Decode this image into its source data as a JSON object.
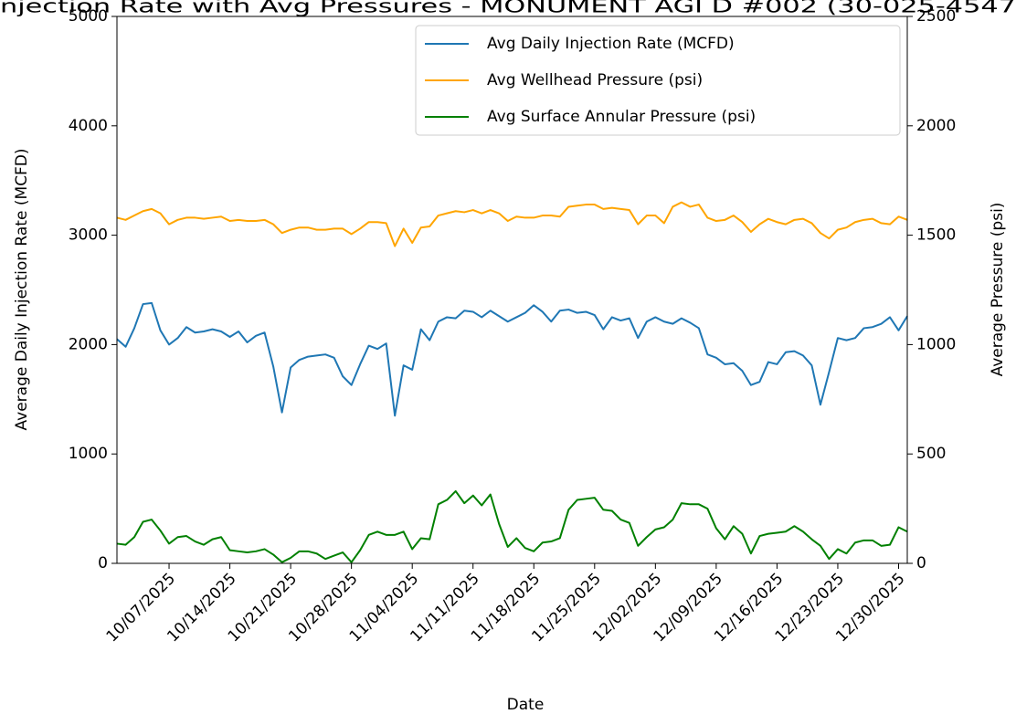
{
  "chart_data": {
    "type": "line",
    "title": "njection Rate with Avg Pressures - MONUMENT AGI D #002 (30-025-4547",
    "x_label": "Date",
    "y_label": "Average Daily Injection Rate (MCFD)",
    "y2_label": "Average Pressure (psi)",
    "x": [
      "10/01/2025",
      "10/02/2025",
      "10/03/2025",
      "10/04/2025",
      "10/05/2025",
      "10/06/2025",
      "10/07/2025",
      "10/08/2025",
      "10/09/2025",
      "10/10/2025",
      "10/11/2025",
      "10/12/2025",
      "10/13/2025",
      "10/14/2025",
      "10/15/2025",
      "10/16/2025",
      "10/17/2025",
      "10/18/2025",
      "10/19/2025",
      "10/20/2025",
      "10/21/2025",
      "10/22/2025",
      "10/23/2025",
      "10/24/2025",
      "10/25/2025",
      "10/26/2025",
      "10/27/2025",
      "10/28/2025",
      "10/29/2025",
      "10/30/2025",
      "10/31/2025",
      "11/01/2025",
      "11/02/2025",
      "11/03/2025",
      "11/04/2025",
      "11/05/2025",
      "11/06/2025",
      "11/07/2025",
      "11/08/2025",
      "11/09/2025",
      "11/10/2025",
      "11/11/2025",
      "11/12/2025",
      "11/13/2025",
      "11/14/2025",
      "11/15/2025",
      "11/16/2025",
      "11/17/2025",
      "11/18/2025",
      "11/19/2025",
      "11/20/2025",
      "11/21/2025",
      "11/22/2025",
      "11/23/2025",
      "11/24/2025",
      "11/25/2025",
      "11/26/2025",
      "11/27/2025",
      "11/28/2025",
      "11/29/2025",
      "11/30/2025",
      "12/01/2025",
      "12/02/2025",
      "12/03/2025",
      "12/04/2025",
      "12/05/2025",
      "12/06/2025",
      "12/07/2025",
      "12/08/2025",
      "12/09/2025",
      "12/10/2025",
      "12/11/2025",
      "12/12/2025",
      "12/13/2025",
      "12/14/2025",
      "12/15/2025",
      "12/16/2025",
      "12/17/2025",
      "12/18/2025",
      "12/19/2025",
      "12/20/2025",
      "12/21/2025",
      "12/22/2025",
      "12/23/2025",
      "12/24/2025",
      "12/25/2025",
      "12/26/2025",
      "12/27/2025",
      "12/28/2025",
      "12/29/2025",
      "12/30/2025",
      "12/31/2025"
    ],
    "xlim": [
      "10/01/2025",
      "12/31/2025"
    ],
    "xticks": [
      "10/07/2025",
      "10/14/2025",
      "10/21/2025",
      "10/28/2025",
      "11/04/2025",
      "11/11/2025",
      "11/18/2025",
      "11/25/2025",
      "12/02/2025",
      "12/09/2025",
      "12/16/2025",
      "12/23/2025",
      "12/30/2025"
    ],
    "ylim": [
      0,
      5000
    ],
    "yticks": [
      0,
      1000,
      2000,
      3000,
      4000,
      5000
    ],
    "y2lim": [
      0,
      2500
    ],
    "y2ticks": [
      0,
      500,
      1000,
      1500,
      2000,
      2500
    ],
    "legend": "upper right",
    "series": [
      {
        "name": "Avg Daily Injection Rate (MCFD)",
        "color": "#1f77b4",
        "values": [
          2050,
          1980,
          2150,
          2370,
          2380,
          2130,
          2000,
          2060,
          2160,
          2110,
          2120,
          2140,
          2120,
          2070,
          2120,
          2020,
          2080,
          2110,
          1800,
          1380,
          1790,
          1860,
          1890,
          1900,
          1910,
          1880,
          1710,
          1630,
          1820,
          1990,
          1960,
          2010,
          1350,
          1810,
          1770,
          2140,
          2040,
          2210,
          2250,
          2240,
          2310,
          2300,
          2250,
          2310,
          2260,
          2210,
          2250,
          2290,
          2360,
          2300,
          2210,
          2310,
          2320,
          2290,
          2300,
          2270,
          2140,
          2250,
          2220,
          2240,
          2060,
          2210,
          2250,
          2210,
          2190,
          2240,
          2200,
          2150,
          1910,
          1880,
          1820,
          1830,
          1760,
          1630,
          1660,
          1840,
          1820,
          1930,
          1940,
          1900,
          1810,
          1450,
          1750,
          2060,
          2040,
          2060,
          2150,
          2160,
          2190,
          2250,
          2130,
          2260
        ]
      },
      {
        "name": "Avg Wellhead Pressure (psi)",
        "color": "#ffa500",
        "axis": "y2",
        "values": [
          1580,
          1570,
          1590,
          1610,
          1620,
          1600,
          1550,
          1570,
          1580,
          1580,
          1575,
          1580,
          1585,
          1565,
          1570,
          1565,
          1565,
          1570,
          1550,
          1510,
          1525,
          1535,
          1535,
          1525,
          1525,
          1530,
          1530,
          1505,
          1530,
          1560,
          1560,
          1555,
          1450,
          1530,
          1465,
          1535,
          1540,
          1590,
          1600,
          1610,
          1605,
          1615,
          1600,
          1615,
          1600,
          1565,
          1585,
          1580,
          1580,
          1590,
          1590,
          1585,
          1630,
          1635,
          1640,
          1640,
          1620,
          1625,
          1620,
          1615,
          1550,
          1590,
          1590,
          1555,
          1630,
          1650,
          1630,
          1640,
          1580,
          1565,
          1570,
          1590,
          1560,
          1515,
          1550,
          1575,
          1560,
          1550,
          1570,
          1575,
          1555,
          1510,
          1485,
          1525,
          1535,
          1560,
          1570,
          1575,
          1555,
          1550,
          1585,
          1570
        ]
      },
      {
        "name": "Avg Surface Annular Pressure (psi)",
        "color": "#008000",
        "axis": "y2",
        "values": [
          90,
          85,
          120,
          190,
          200,
          150,
          90,
          120,
          125,
          100,
          85,
          110,
          120,
          60,
          55,
          50,
          55,
          65,
          40,
          5,
          25,
          55,
          55,
          45,
          20,
          35,
          50,
          5,
          60,
          130,
          145,
          130,
          130,
          145,
          65,
          115,
          110,
          270,
          290,
          330,
          275,
          310,
          265,
          315,
          180,
          75,
          115,
          70,
          55,
          95,
          100,
          115,
          245,
          290,
          295,
          300,
          245,
          240,
          200,
          185,
          80,
          120,
          155,
          165,
          200,
          275,
          270,
          270,
          250,
          160,
          110,
          170,
          135,
          45,
          125,
          135,
          140,
          145,
          170,
          145,
          110,
          80,
          20,
          65,
          45,
          95,
          105,
          105,
          80,
          85,
          165,
          145
        ]
      }
    ]
  }
}
